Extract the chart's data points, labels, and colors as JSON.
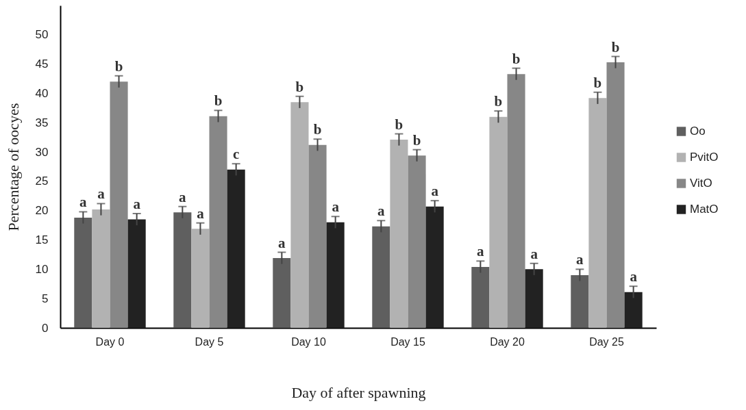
{
  "chart_data": {
    "type": "bar",
    "xlabel": "Day of  after spawning",
    "ylabel": "Percentage of oocyes",
    "categories": [
      "Day 0",
      "Day 5",
      "Day 10",
      "Day 15",
      "Day 20",
      "Day 25"
    ],
    "series": [
      {
        "name": "Oo",
        "color": "#5f5f5f",
        "values": [
          18.8,
          19.7,
          11.9,
          17.3,
          10.4,
          9.0
        ],
        "errors": [
          1,
          1,
          1,
          1,
          1,
          1
        ],
        "value_labels": [
          "a",
          "a",
          "a",
          "a",
          "a",
          "a"
        ]
      },
      {
        "name": "PvitO",
        "color": "#b2b2b2",
        "values": [
          20.2,
          16.9,
          38.5,
          32.1,
          36.0,
          39.2
        ],
        "errors": [
          1,
          1,
          1,
          1,
          1,
          1
        ],
        "value_labels": [
          "a",
          "a",
          "b",
          "b",
          "b",
          "b"
        ]
      },
      {
        "name": "VitO",
        "color": "#878787",
        "values": [
          42.0,
          36.1,
          31.2,
          29.4,
          43.3,
          45.3
        ],
        "errors": [
          1,
          1,
          1,
          1,
          1,
          1
        ],
        "value_labels": [
          "b",
          "b",
          "b",
          "b",
          "b",
          "b"
        ]
      },
      {
        "name": "MatO",
        "color": "#222222",
        "values": [
          18.5,
          27.0,
          18.0,
          20.7,
          10.0,
          6.1
        ],
        "errors": [
          1,
          1,
          1,
          1,
          1,
          1
        ],
        "value_labels": [
          "a",
          "c",
          "a",
          "a",
          "a",
          "a"
        ]
      }
    ],
    "ylim": [
      0,
      55
    ],
    "yticks": [
      0,
      5,
      10,
      15,
      20,
      25,
      30,
      35,
      40,
      45,
      50
    ],
    "grid": false,
    "legend": "right"
  }
}
